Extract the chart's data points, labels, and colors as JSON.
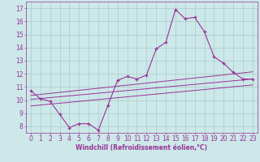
{
  "xlabel": "Windchill (Refroidissement éolien,°C)",
  "bg_color": "#cce8e8",
  "grid_color": "#aacccc",
  "line_color": "#993399",
  "xlim": [
    -0.5,
    23.5
  ],
  "ylim": [
    7.5,
    17.5
  ],
  "xticks": [
    0,
    1,
    2,
    3,
    4,
    5,
    6,
    7,
    8,
    9,
    10,
    11,
    12,
    13,
    14,
    15,
    16,
    17,
    18,
    19,
    20,
    21,
    22,
    23
  ],
  "yticks": [
    8,
    9,
    10,
    11,
    12,
    13,
    14,
    15,
    16,
    17
  ],
  "line1_x": [
    0,
    1,
    2,
    3,
    4,
    5,
    6,
    7,
    8,
    9,
    10,
    11,
    12,
    13,
    14,
    15,
    16,
    17,
    18,
    19,
    20,
    21,
    22,
    23
  ],
  "line1_y": [
    10.7,
    10.1,
    9.9,
    8.9,
    7.9,
    8.2,
    8.2,
    7.7,
    9.6,
    11.5,
    11.8,
    11.6,
    11.9,
    13.9,
    14.4,
    16.9,
    16.2,
    16.3,
    15.2,
    13.3,
    12.8,
    12.1,
    11.6,
    11.6
  ],
  "line2_x": [
    0,
    23
  ],
  "line2_y": [
    10.05,
    11.6
  ],
  "line3_x": [
    0,
    23
  ],
  "line3_y": [
    10.35,
    12.15
  ],
  "line4_x": [
    0,
    23
  ],
  "line4_y": [
    9.55,
    11.15
  ],
  "figsize": [
    3.2,
    2.0
  ],
  "dpi": 100,
  "tick_fontsize": 5.5,
  "xlabel_fontsize": 5.5
}
